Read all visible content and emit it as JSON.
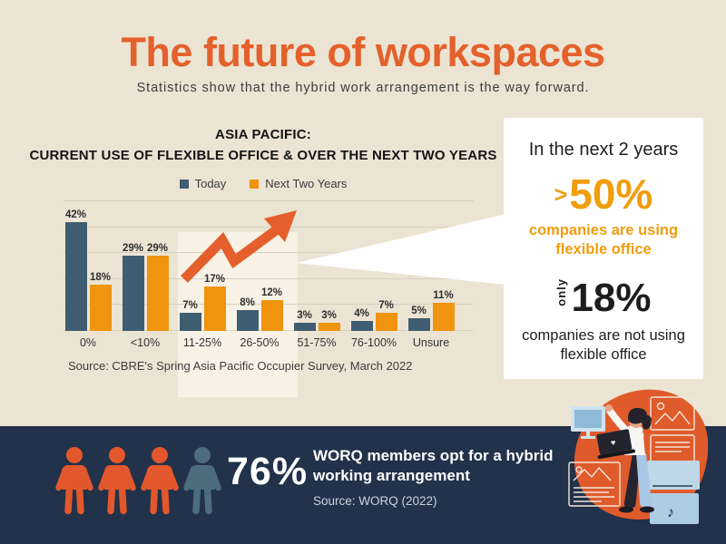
{
  "page": {
    "title": "The future of workspaces",
    "subtitle": "Statistics show that the hybrid work arrangement is the way forward."
  },
  "chart": {
    "title_line1": "ASIA PACIFIC:",
    "title_line2": "CURRENT USE OF FLEXIBLE OFFICE & OVER THE NEXT TWO YEARS",
    "source": "Source: CBRE's Spring Asia Pacific Occupier Survey, March 2022"
  },
  "chart_data": {
    "type": "bar",
    "title": "ASIA PACIFIC: CURRENT USE OF FLEXIBLE OFFICE & OVER THE NEXT TWO YEARS",
    "categories": [
      "0%",
      "<10%",
      "11-25%",
      "26-50%",
      "51-75%",
      "76-100%",
      "Unsure"
    ],
    "series": [
      {
        "name": "Today",
        "values": [
          42,
          29,
          7,
          8,
          3,
          4,
          5
        ]
      },
      {
        "name": "Next Two Years",
        "values": [
          18,
          29,
          17,
          12,
          3,
          7,
          11
        ]
      }
    ],
    "series_colors": [
      "#3f5d71",
      "#f0930f"
    ],
    "unit": "%",
    "ylim": [
      0,
      50
    ],
    "grid_step": 10,
    "grid": true,
    "legend_position": "top"
  },
  "callout": {
    "heading": "In the next 2 years",
    "stat1": {
      "prefix": ">",
      "value": "50%",
      "caption": "companies are using flexible office"
    },
    "stat2": {
      "prefix": "only",
      "value": "18%",
      "caption": "companies are not using flexible office"
    }
  },
  "bottom": {
    "stat": "76%",
    "message": "WORQ members opt for a hybrid working arrangement",
    "source": "Source: WORQ (2022)",
    "people_colors": [
      "#e2572b",
      "#e2572b",
      "#e2572b",
      "#4e6d7c"
    ]
  },
  "icons": {
    "trend_arrow": "trend-arrow-icon",
    "person": "person-icon",
    "illustration": "person-with-laptop-illustration",
    "monitor": "monitor-icon",
    "music_note": "music-note-icon"
  },
  "colors": {
    "background": "#ece4d3",
    "highlight_panel": "#f7f2e5",
    "title_orange": "#e4612c",
    "bar_today": "#3f5d71",
    "bar_next_two_years": "#f0930f",
    "callout_orange": "#f09d0e",
    "navy": "#21324a",
    "icon_orange": "#e2572b",
    "icon_slate": "#4e6d7c"
  }
}
